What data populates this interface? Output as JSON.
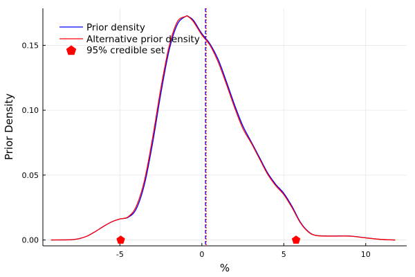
{
  "chart_data": {
    "type": "line",
    "title": "",
    "xlabel": "%",
    "ylabel": "Prior Density",
    "xlim": [
      -9.7,
      12.5
    ],
    "ylim": [
      -0.0045,
      0.1785
    ],
    "xticks": [
      -5,
      0,
      5,
      10
    ],
    "xtick_labels": [
      "-5",
      "0",
      "5",
      "10"
    ],
    "yticks": [
      0.0,
      0.05,
      0.1,
      0.15
    ],
    "ytick_labels": [
      "0.00",
      "0.05",
      "0.10",
      "0.15"
    ],
    "grid": true,
    "legend_position": "top-left",
    "legend": [
      {
        "label": "Prior density",
        "kind": "line",
        "color": "#0000ff"
      },
      {
        "label": "Alternative prior density",
        "kind": "line",
        "color": "#ff0000"
      },
      {
        "label": "95% credible set",
        "kind": "marker",
        "color": "#ff0000"
      }
    ],
    "series": [
      {
        "color": "#0000ff",
        "x": [
          -9.2,
          -8,
          -7.5,
          -7,
          -6.5,
          -6,
          -5.5,
          -5,
          -4.5,
          -4,
          -3.5,
          -3,
          -2.5,
          -2,
          -1.5,
          -1,
          -0.8,
          -0.5,
          0,
          0.5,
          1,
          1.5,
          2,
          2.5,
          3,
          3.5,
          4,
          4.5,
          5,
          5.5,
          6,
          6.5,
          7,
          8,
          9,
          10,
          11,
          11.8
        ],
        "y": [
          0.0,
          0.0002,
          0.001,
          0.003,
          0.0065,
          0.0105,
          0.014,
          0.0162,
          0.0175,
          0.024,
          0.043,
          0.075,
          0.113,
          0.146,
          0.166,
          0.1722,
          0.172,
          0.169,
          0.159,
          0.151,
          0.139,
          0.122,
          0.104,
          0.088,
          0.076,
          0.064,
          0.052,
          0.043,
          0.036,
          0.026,
          0.014,
          0.0065,
          0.0035,
          0.0031,
          0.0031,
          0.0017,
          0.0004,
          0.0
        ]
      },
      {
        "color": "#ff0000",
        "x": [
          -9.2,
          -8,
          -7.5,
          -7,
          -6.5,
          -6,
          -5.5,
          -5,
          -4.5,
          -4,
          -3.5,
          -3,
          -2.5,
          -2,
          -1.5,
          -1,
          -0.8,
          -0.5,
          0,
          0.5,
          1,
          1.5,
          2,
          2.5,
          3,
          3.5,
          4,
          4.5,
          5,
          5.5,
          6,
          6.5,
          7,
          8,
          9,
          10,
          11,
          11.8
        ],
        "y": [
          0.0,
          0.0002,
          0.001,
          0.003,
          0.0065,
          0.0105,
          0.014,
          0.0162,
          0.0178,
          0.026,
          0.046,
          0.079,
          0.117,
          0.149,
          0.168,
          0.1722,
          0.1718,
          0.168,
          0.158,
          0.15,
          0.137,
          0.12,
          0.102,
          0.086,
          0.075,
          0.063,
          0.051,
          0.042,
          0.035,
          0.025,
          0.0135,
          0.0062,
          0.0034,
          0.003,
          0.003,
          0.0016,
          0.0004,
          0.0
        ]
      }
    ],
    "vlines": [
      {
        "x": 0.22,
        "color": "#0000ff",
        "style": "dashed"
      },
      {
        "x": 0.26,
        "color": "#ff0000",
        "style": "dotted"
      }
    ],
    "credible_set_points": [
      {
        "x": -4.95,
        "y": 0.0
      },
      {
        "x": 5.75,
        "y": 0.0
      }
    ]
  }
}
